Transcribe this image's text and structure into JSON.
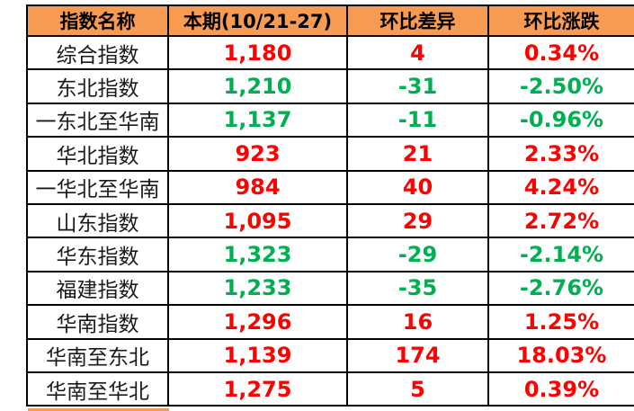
{
  "colors": {
    "header_bg": "#F89B52",
    "up_red": "#FF0000",
    "down_green": "#00B050",
    "border": "#000000",
    "label_text": "#1A1A1A"
  },
  "chart_data": {
    "type": "table",
    "legend_position": "none",
    "grid": "on",
    "columns": [
      "指数名称",
      "本期(10/21-27)",
      "环比差异",
      "环比涨跌"
    ],
    "rows": [
      {
        "name": "综合指数",
        "current": "1,180",
        "diff": "4",
        "pct": "0.34%",
        "trend": "up"
      },
      {
        "name": "东北指数",
        "current": "1,210",
        "diff": "-31",
        "pct": "-2.50%",
        "trend": "down"
      },
      {
        "name": "一东北至华南",
        "current": "1,137",
        "diff": "-11",
        "pct": "-0.96%",
        "trend": "down"
      },
      {
        "name": "华北指数",
        "current": "923",
        "diff": "21",
        "pct": "2.33%",
        "trend": "up"
      },
      {
        "name": "一华北至华南",
        "current": "984",
        "diff": "40",
        "pct": "4.24%",
        "trend": "up"
      },
      {
        "name": "山东指数",
        "current": "1,095",
        "diff": "29",
        "pct": "2.72%",
        "trend": "up"
      },
      {
        "name": "华东指数",
        "current": "1,323",
        "diff": "-29",
        "pct": "-2.14%",
        "trend": "down"
      },
      {
        "name": "福建指数",
        "current": "1,233",
        "diff": "-35",
        "pct": "-2.76%",
        "trend": "down"
      },
      {
        "name": "华南指数",
        "current": "1,296",
        "diff": "16",
        "pct": "1.25%",
        "trend": "up"
      },
      {
        "name": "华南至东北",
        "current": "1,139",
        "diff": "174",
        "pct": "18.03%",
        "trend": "up"
      },
      {
        "name": "华南至华北",
        "current": "1,275",
        "diff": "5",
        "pct": "0.39%",
        "trend": "up"
      }
    ]
  }
}
